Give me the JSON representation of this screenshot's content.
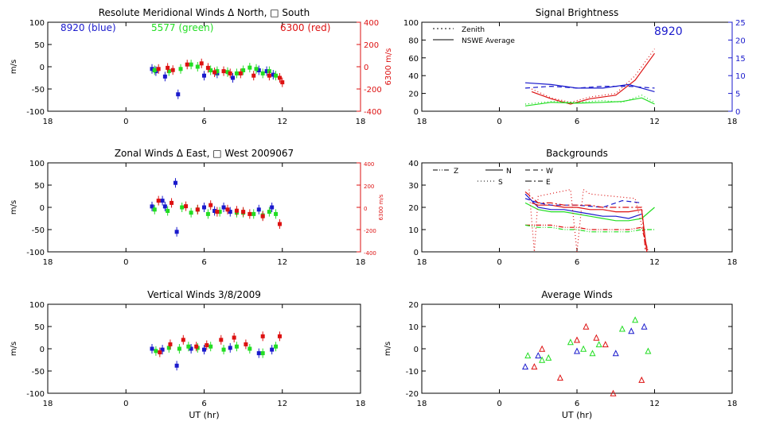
{
  "chart_data": [
    {
      "id": "meridional",
      "type": "scatter",
      "title": "Resolute Meridional Winds Δ North, □ South",
      "ylabel": "m/s",
      "y2label": "6300 m/s",
      "xlim": [
        -6,
        18
      ],
      "xticks": [
        "18",
        "0",
        "6",
        "12",
        "18"
      ],
      "ylim": [
        -100,
        100
      ],
      "yticks": [
        "-100",
        "-50",
        "0",
        "50",
        "100"
      ],
      "y2lim": [
        -400,
        400
      ],
      "y2ticks": [
        "-400",
        "-200",
        "0",
        "200",
        "400"
      ],
      "annotations": [
        {
          "text": "8920 (blue)",
          "color": "#1a1acc"
        },
        {
          "text": "5577 (green)",
          "color": "#22dd22"
        },
        {
          "text": "6300 (red)",
          "color": "#dd1111"
        }
      ],
      "series": [
        {
          "name": "8920 (blue)",
          "color": "#1a1acc",
          "x": [
            2.0,
            2.3,
            3.0,
            4.0,
            6.0,
            7.0,
            8.2,
            10.2,
            10.8,
            11.3
          ],
          "y": [
            -5,
            -10,
            -22,
            -62,
            -20,
            -15,
            -25,
            -8,
            -10,
            -18
          ]
        },
        {
          "name": "5577 (green)",
          "color": "#22dd22",
          "x": [
            2.2,
            3.3,
            4.2,
            5.0,
            5.5,
            6.5,
            7.0,
            7.8,
            8.5,
            9.0,
            9.5,
            10.0,
            10.5,
            11.0,
            11.5
          ],
          "y": [
            -8,
            -10,
            -5,
            5,
            0,
            -8,
            -10,
            -12,
            -15,
            -8,
            -2,
            -5,
            -15,
            -10,
            -20
          ]
        },
        {
          "name": "6300 (red)",
          "color": "#dd1111",
          "axis": "right",
          "x": [
            2.5,
            3.2,
            3.6,
            4.7,
            5.8,
            6.3,
            6.8,
            7.5,
            8.0,
            8.8,
            9.8,
            11.0,
            11.8,
            12.0
          ],
          "y": [
            -20,
            -10,
            -30,
            20,
            30,
            -10,
            -50,
            -40,
            -60,
            -60,
            -80,
            -80,
            -100,
            -140
          ]
        }
      ]
    },
    {
      "id": "zonal",
      "type": "scatter",
      "title": "Zonal Winds Δ East, □ West 2009067",
      "ylabel": "m/s",
      "y2label": "6300 m/s",
      "xlim": [
        -6,
        18
      ],
      "xticks": [
        "18",
        "0",
        "6",
        "12",
        "18"
      ],
      "ylim": [
        -100,
        100
      ],
      "yticks": [
        "-100",
        "-50",
        "0",
        "50",
        "100"
      ],
      "y2lim": [
        -400,
        400
      ],
      "y2ticks": [
        "-400",
        "-200",
        "0",
        "200",
        "400"
      ],
      "series": [
        {
          "name": "8920",
          "color": "#1a1acc",
          "x": [
            2.0,
            2.8,
            3.0,
            3.8,
            3.9,
            6.0,
            6.8,
            7.5,
            8.0,
            10.2,
            11.2
          ],
          "y": [
            2,
            15,
            2,
            55,
            -55,
            0,
            -8,
            0,
            -10,
            -5,
            0
          ]
        },
        {
          "name": "5577",
          "color": "#22dd22",
          "x": [
            2.2,
            3.2,
            4.3,
            5.0,
            5.5,
            6.3,
            7.2,
            8.5,
            9.0,
            9.8,
            10.5,
            11.0,
            11.5
          ],
          "y": [
            -5,
            -8,
            0,
            -12,
            -5,
            -15,
            -10,
            -12,
            -12,
            -15,
            -18,
            -10,
            -15
          ]
        },
        {
          "name": "6300",
          "color": "#dd1111",
          "axis": "right",
          "x": [
            2.5,
            3.5,
            4.6,
            5.5,
            6.5,
            7.0,
            7.8,
            8.5,
            9.0,
            9.5,
            10.5,
            11.8
          ],
          "y": [
            60,
            40,
            10,
            -20,
            20,
            -40,
            -20,
            -30,
            -40,
            -60,
            -80,
            -150
          ]
        }
      ]
    },
    {
      "id": "vertical",
      "type": "scatter",
      "title": "Vertical Winds 3/8/2009",
      "ylabel": "m/s",
      "xlabel": "UT (hr)",
      "xlim": [
        -6,
        18
      ],
      "xticks": [
        "18",
        "0",
        "6",
        "12",
        "18"
      ],
      "ylim": [
        -100,
        100
      ],
      "yticks": [
        "-100",
        "-50",
        "0",
        "50",
        "100"
      ],
      "series": [
        {
          "name": "8920",
          "color": "#1a1acc",
          "x": [
            2.0,
            2.8,
            3.9,
            5.0,
            6.0,
            8.0,
            10.2,
            11.2
          ],
          "y": [
            0,
            -2,
            -38,
            0,
            -2,
            2,
            -10,
            -2
          ]
        },
        {
          "name": "5577",
          "color": "#22dd22",
          "x": [
            2.3,
            3.3,
            4.1,
            4.8,
            5.5,
            6.5,
            7.5,
            8.5,
            9.5,
            10.5,
            11.5
          ],
          "y": [
            -5,
            2,
            0,
            5,
            2,
            5,
            -2,
            5,
            0,
            -10,
            5
          ]
        },
        {
          "name": "6300",
          "color": "#dd1111",
          "x": [
            2.6,
            3.4,
            4.4,
            5.4,
            6.2,
            7.3,
            8.3,
            9.2,
            10.5,
            11.8
          ],
          "y": [
            -8,
            10,
            20,
            5,
            8,
            20,
            25,
            10,
            28,
            28
          ]
        }
      ]
    },
    {
      "id": "brightness",
      "type": "line",
      "title": "Signal Brightness",
      "xlim": [
        -6,
        18
      ],
      "xticks": [
        "18",
        "0",
        "6",
        "12",
        "18"
      ],
      "ylim": [
        0,
        100
      ],
      "yticks": [
        "0",
        "20",
        "40",
        "60",
        "80",
        "100"
      ],
      "y2lim": [
        0,
        25
      ],
      "y2ticks": [
        "0",
        "5",
        "10",
        "15",
        "20",
        "25"
      ],
      "annotation": "8920",
      "annotation_color": "#1a1acc",
      "legend": [
        {
          "label": "Zenith",
          "dash": "2,3"
        },
        {
          "label": "NSWE Average",
          "dash": ""
        }
      ],
      "series": [
        {
          "name": "6300 Zenith",
          "color": "#dd1111",
          "style": "dotted",
          "x": [
            2.5,
            4,
            5.5,
            7,
            9,
            10.5,
            12
          ],
          "y": [
            25,
            15,
            10,
            16,
            20,
            40,
            70
          ]
        },
        {
          "name": "6300 NSWE Average",
          "color": "#dd1111",
          "style": "solid",
          "x": [
            2.5,
            4,
            5.5,
            7,
            9,
            10.5,
            12
          ],
          "y": [
            22,
            14,
            8,
            14,
            18,
            35,
            65
          ]
        },
        {
          "name": "5577 Zenith",
          "color": "#22dd22",
          "style": "dotted",
          "x": [
            2,
            4,
            6,
            8,
            9.5,
            11,
            12
          ],
          "y": [
            8,
            11,
            10,
            12,
            10,
            18,
            10
          ]
        },
        {
          "name": "5577 NSWE Average",
          "color": "#22dd22",
          "style": "solid",
          "x": [
            2,
            4,
            6,
            8,
            9.5,
            11,
            12
          ],
          "y": [
            6,
            10,
            9,
            10,
            11,
            15,
            8
          ]
        },
        {
          "name": "8920 Zenith",
          "color": "#1a1acc",
          "style": "dashed",
          "axis": "right",
          "x": [
            2,
            4,
            6,
            8,
            10,
            12
          ],
          "y": [
            6.5,
            7,
            6.5,
            7,
            7,
            6.5
          ]
        },
        {
          "name": "8920 NSWE Average",
          "color": "#1a1acc",
          "style": "solid",
          "axis": "right",
          "x": [
            2,
            4,
            6,
            8,
            10,
            12
          ],
          "y": [
            8,
            7.5,
            6.5,
            6.5,
            7.5,
            5.5
          ]
        }
      ]
    },
    {
      "id": "backgrounds",
      "type": "line",
      "title": "Backgrounds",
      "xlim": [
        -6,
        18
      ],
      "xticks": [
        "18",
        "0",
        "6",
        "12",
        "18"
      ],
      "ylim": [
        0,
        40
      ],
      "yticks": [
        "0",
        "10",
        "20",
        "30",
        "40"
      ],
      "legend": [
        {
          "label": "Z",
          "dash": "6,2,1,2,1,2"
        },
        {
          "label": "N",
          "dash": ""
        },
        {
          "label": "W",
          "dash": "6,4"
        },
        {
          "label": "S",
          "dash": "1,3"
        },
        {
          "label": "E",
          "dash": "8,3,2,3"
        }
      ],
      "series": [
        {
          "name": "N 5577",
          "color": "#22dd22",
          "style": "solid",
          "x": [
            2,
            3,
            4,
            5,
            6,
            7,
            8,
            9,
            10,
            11,
            12
          ],
          "y": [
            22,
            19,
            18,
            18,
            17,
            16,
            15,
            14,
            14,
            15,
            20
          ]
        },
        {
          "name": "N 8920",
          "color": "#1a1acc",
          "style": "solid",
          "x": [
            2,
            3,
            4,
            5,
            6,
            7,
            8,
            9,
            10,
            11
          ],
          "y": [
            26,
            20,
            19,
            19,
            18,
            17,
            16,
            16,
            15,
            17
          ]
        },
        {
          "name": "N 6300",
          "color": "#dd1111",
          "style": "solid",
          "x": [
            2.5,
            3,
            4,
            5,
            6,
            7,
            8,
            9,
            10,
            11,
            11.4
          ],
          "y": [
            22,
            21,
            21,
            20,
            20,
            19,
            19,
            18,
            18,
            19,
            0
          ]
        },
        {
          "name": "W 8920",
          "color": "#1a1acc",
          "style": "dashed",
          "x": [
            2,
            3,
            4,
            6,
            8,
            9.5,
            11
          ],
          "y": [
            24,
            22,
            21,
            21,
            20,
            23,
            22
          ]
        },
        {
          "name": "Z 6300",
          "color": "#dd1111",
          "style": "dashdot",
          "x": [
            2,
            3,
            4,
            5,
            6,
            7,
            8,
            9,
            10,
            11,
            11.5
          ],
          "y": [
            12,
            12,
            12,
            11,
            11,
            10,
            10,
            10,
            10,
            11,
            0
          ]
        },
        {
          "name": "Z 5577",
          "color": "#22dd22",
          "style": "dashdot",
          "x": [
            2,
            3,
            4,
            5,
            6,
            7,
            8,
            9,
            10,
            11,
            12
          ],
          "y": [
            12,
            11,
            11,
            10,
            10,
            9,
            9,
            9,
            9,
            10,
            10
          ]
        },
        {
          "name": "S 6300",
          "color": "#dd1111",
          "style": "dotted",
          "x": [
            2.3,
            2.7,
            3,
            5.5,
            6,
            6.5,
            7,
            10.5,
            11.5
          ],
          "y": [
            28,
            0,
            25,
            28,
            0,
            28,
            26,
            24,
            0
          ]
        },
        {
          "name": "E 6300",
          "color": "#dd1111",
          "style": "longdash",
          "x": [
            2,
            3,
            4,
            5,
            6,
            7,
            8,
            9,
            10,
            11,
            11.3
          ],
          "y": [
            27,
            22,
            22,
            21,
            21,
            21,
            20,
            20,
            20,
            20,
            0
          ]
        }
      ]
    },
    {
      "id": "average",
      "type": "scatter",
      "title": "Average Winds",
      "ylabel": "m/s",
      "xlabel": "UT (hr)",
      "xlim": [
        -6,
        18
      ],
      "xticks": [
        "18",
        "0",
        "6",
        "12",
        "18"
      ],
      "ylim": [
        -20,
        20
      ],
      "yticks": [
        "-20",
        "-10",
        "0",
        "10",
        "20"
      ],
      "series": [
        {
          "name": "8920",
          "color": "#1a1acc",
          "x": [
            2.0,
            3.0,
            6.0,
            9.0,
            10.2,
            11.2
          ],
          "y": [
            -8,
            -3,
            -1,
            -2,
            8,
            10
          ]
        },
        {
          "name": "5577",
          "color": "#22dd22",
          "x": [
            2.2,
            3.3,
            3.8,
            5.5,
            6.5,
            7.2,
            7.7,
            9.5,
            10.5,
            11.5
          ],
          "y": [
            -3,
            -5,
            -4,
            3,
            0,
            -2,
            2,
            9,
            13,
            -1
          ]
        },
        {
          "name": "6300",
          "color": "#dd1111",
          "x": [
            2.7,
            3.3,
            4.7,
            6.0,
            6.7,
            7.5,
            8.2,
            8.8,
            11.0
          ],
          "y": [
            -8,
            0,
            -13,
            4,
            10,
            5,
            2,
            -20,
            -14
          ]
        }
      ]
    }
  ]
}
